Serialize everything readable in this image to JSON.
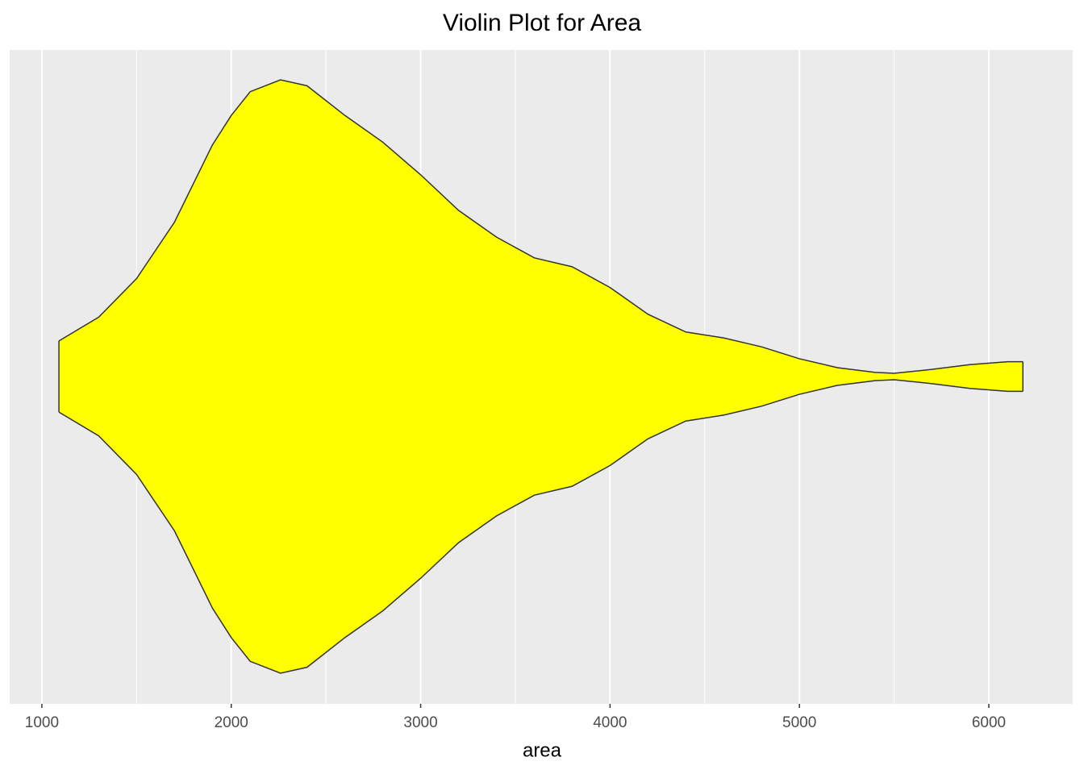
{
  "chart_data": {
    "type": "violin",
    "title": "Violin Plot for Area",
    "x_label": "area",
    "x": [
      1090,
      1300,
      1500,
      1700,
      1900,
      2000,
      2100,
      2260,
      2400,
      2600,
      2800,
      3000,
      3200,
      3400,
      3600,
      3800,
      4000,
      4200,
      4400,
      4600,
      4800,
      5000,
      5200,
      5400,
      5500,
      5700,
      5900,
      6100,
      6180
    ],
    "density": [
      0.12,
      0.2,
      0.33,
      0.52,
      0.78,
      0.88,
      0.96,
      1,
      0.98,
      0.88,
      0.79,
      0.68,
      0.56,
      0.47,
      0.4,
      0.37,
      0.3,
      0.21,
      0.15,
      0.13,
      0.1,
      0.06,
      0.03,
      0.014,
      0.011,
      0.024,
      0.04,
      0.05,
      0.05
    ],
    "color": "#ffff00",
    "outline": "#333333",
    "xlim": [
      830,
      6443
    ],
    "xticks": [
      1000,
      2000,
      3000,
      4000,
      5000,
      6000
    ],
    "xminor": [
      1500,
      2500,
      3500,
      4500,
      5500
    ],
    "grid": true
  }
}
